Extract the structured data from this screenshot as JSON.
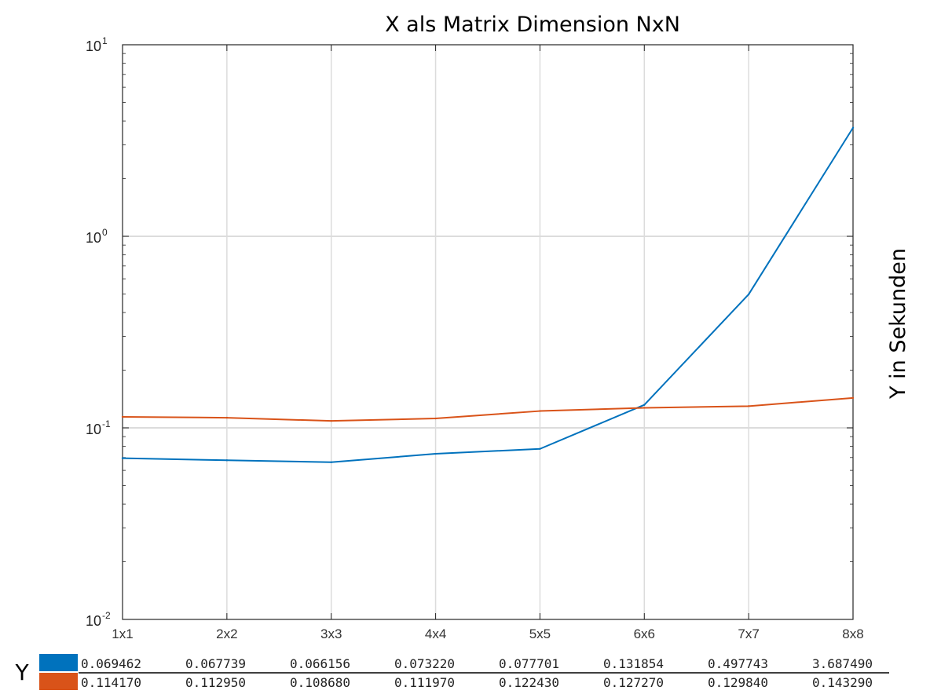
{
  "chart_data": {
    "type": "line",
    "title": "X als Matrix Dimension NxN",
    "ylabel": "Y in Sekunden",
    "yscale": "log",
    "ylim": [
      0.01,
      10
    ],
    "yticks": [
      {
        "base": "10",
        "exp": "-2",
        "value": 0.01
      },
      {
        "base": "10",
        "exp": "-1",
        "value": 0.1
      },
      {
        "base": "10",
        "exp": "0",
        "value": 1
      },
      {
        "base": "10",
        "exp": "1",
        "value": 10
      }
    ],
    "grid": true,
    "categories": [
      "1x1",
      "2x2",
      "3x3",
      "4x4",
      "5x5",
      "6x6",
      "7x7",
      "8x8"
    ],
    "series": [
      {
        "color": "#0072BD",
        "values": [
          0.069462,
          0.067739,
          0.066156,
          0.07322,
          0.077701,
          0.131854,
          0.497743,
          3.68749
        ],
        "labels": [
          "0.069462",
          "0.067739",
          "0.066156",
          "0.073220",
          "0.077701",
          "0.131854",
          "0.497743",
          "3.687490"
        ]
      },
      {
        "color": "#D95319",
        "values": [
          0.11417,
          0.11295,
          0.10868,
          0.11197,
          0.12243,
          0.12727,
          0.12984,
          0.14329
        ],
        "labels": [
          "0.114170",
          "0.112950",
          "0.108680",
          "0.111970",
          "0.122430",
          "0.127270",
          "0.129840",
          "0.143290"
        ]
      }
    ],
    "table_label": "Y"
  }
}
